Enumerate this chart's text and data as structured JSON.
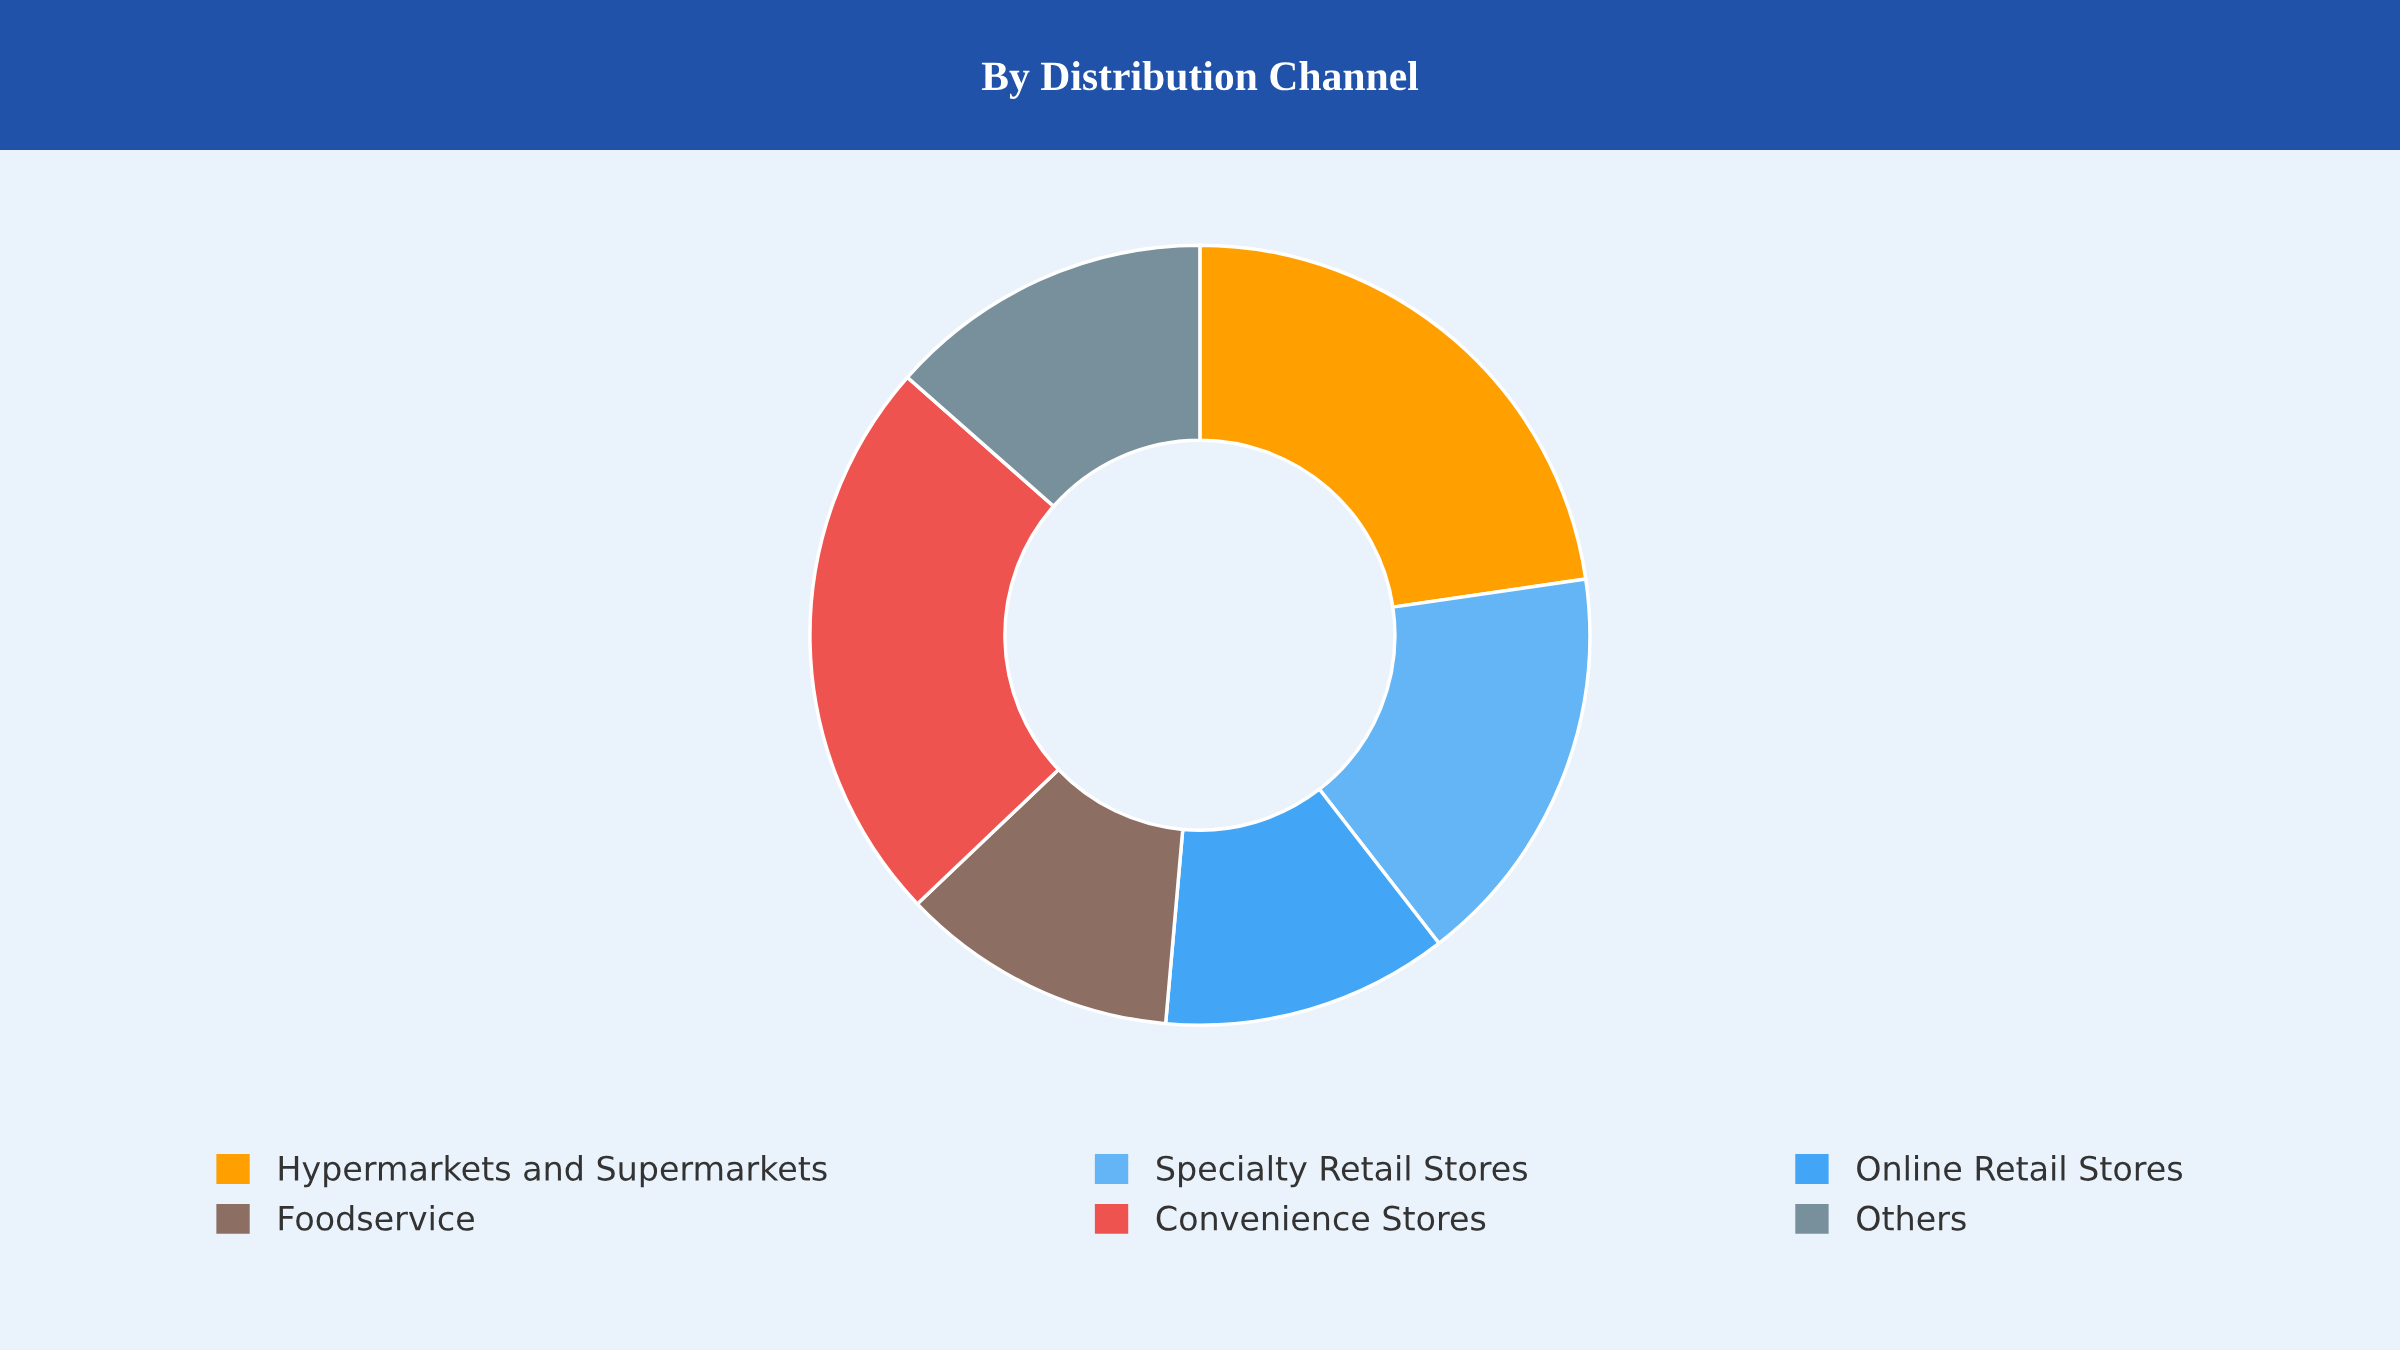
{
  "chart_data": {
    "type": "donut",
    "title": "By Distribution Channel",
    "categories": [
      "Hypermarkets and Supermarkets",
      "Specialty Retail Stores",
      "Online Retail Stores",
      "Foodservice",
      "Convenience Stores",
      "Others"
    ],
    "values": [
      22.7,
      16.8,
      11.9,
      11.5,
      23.6,
      13.5
    ],
    "colors": [
      "#ffa000",
      "#64b5f6",
      "#42a5f5",
      "#8d6e63",
      "#ef5350",
      "#78909c"
    ],
    "legend": "bottom"
  }
}
